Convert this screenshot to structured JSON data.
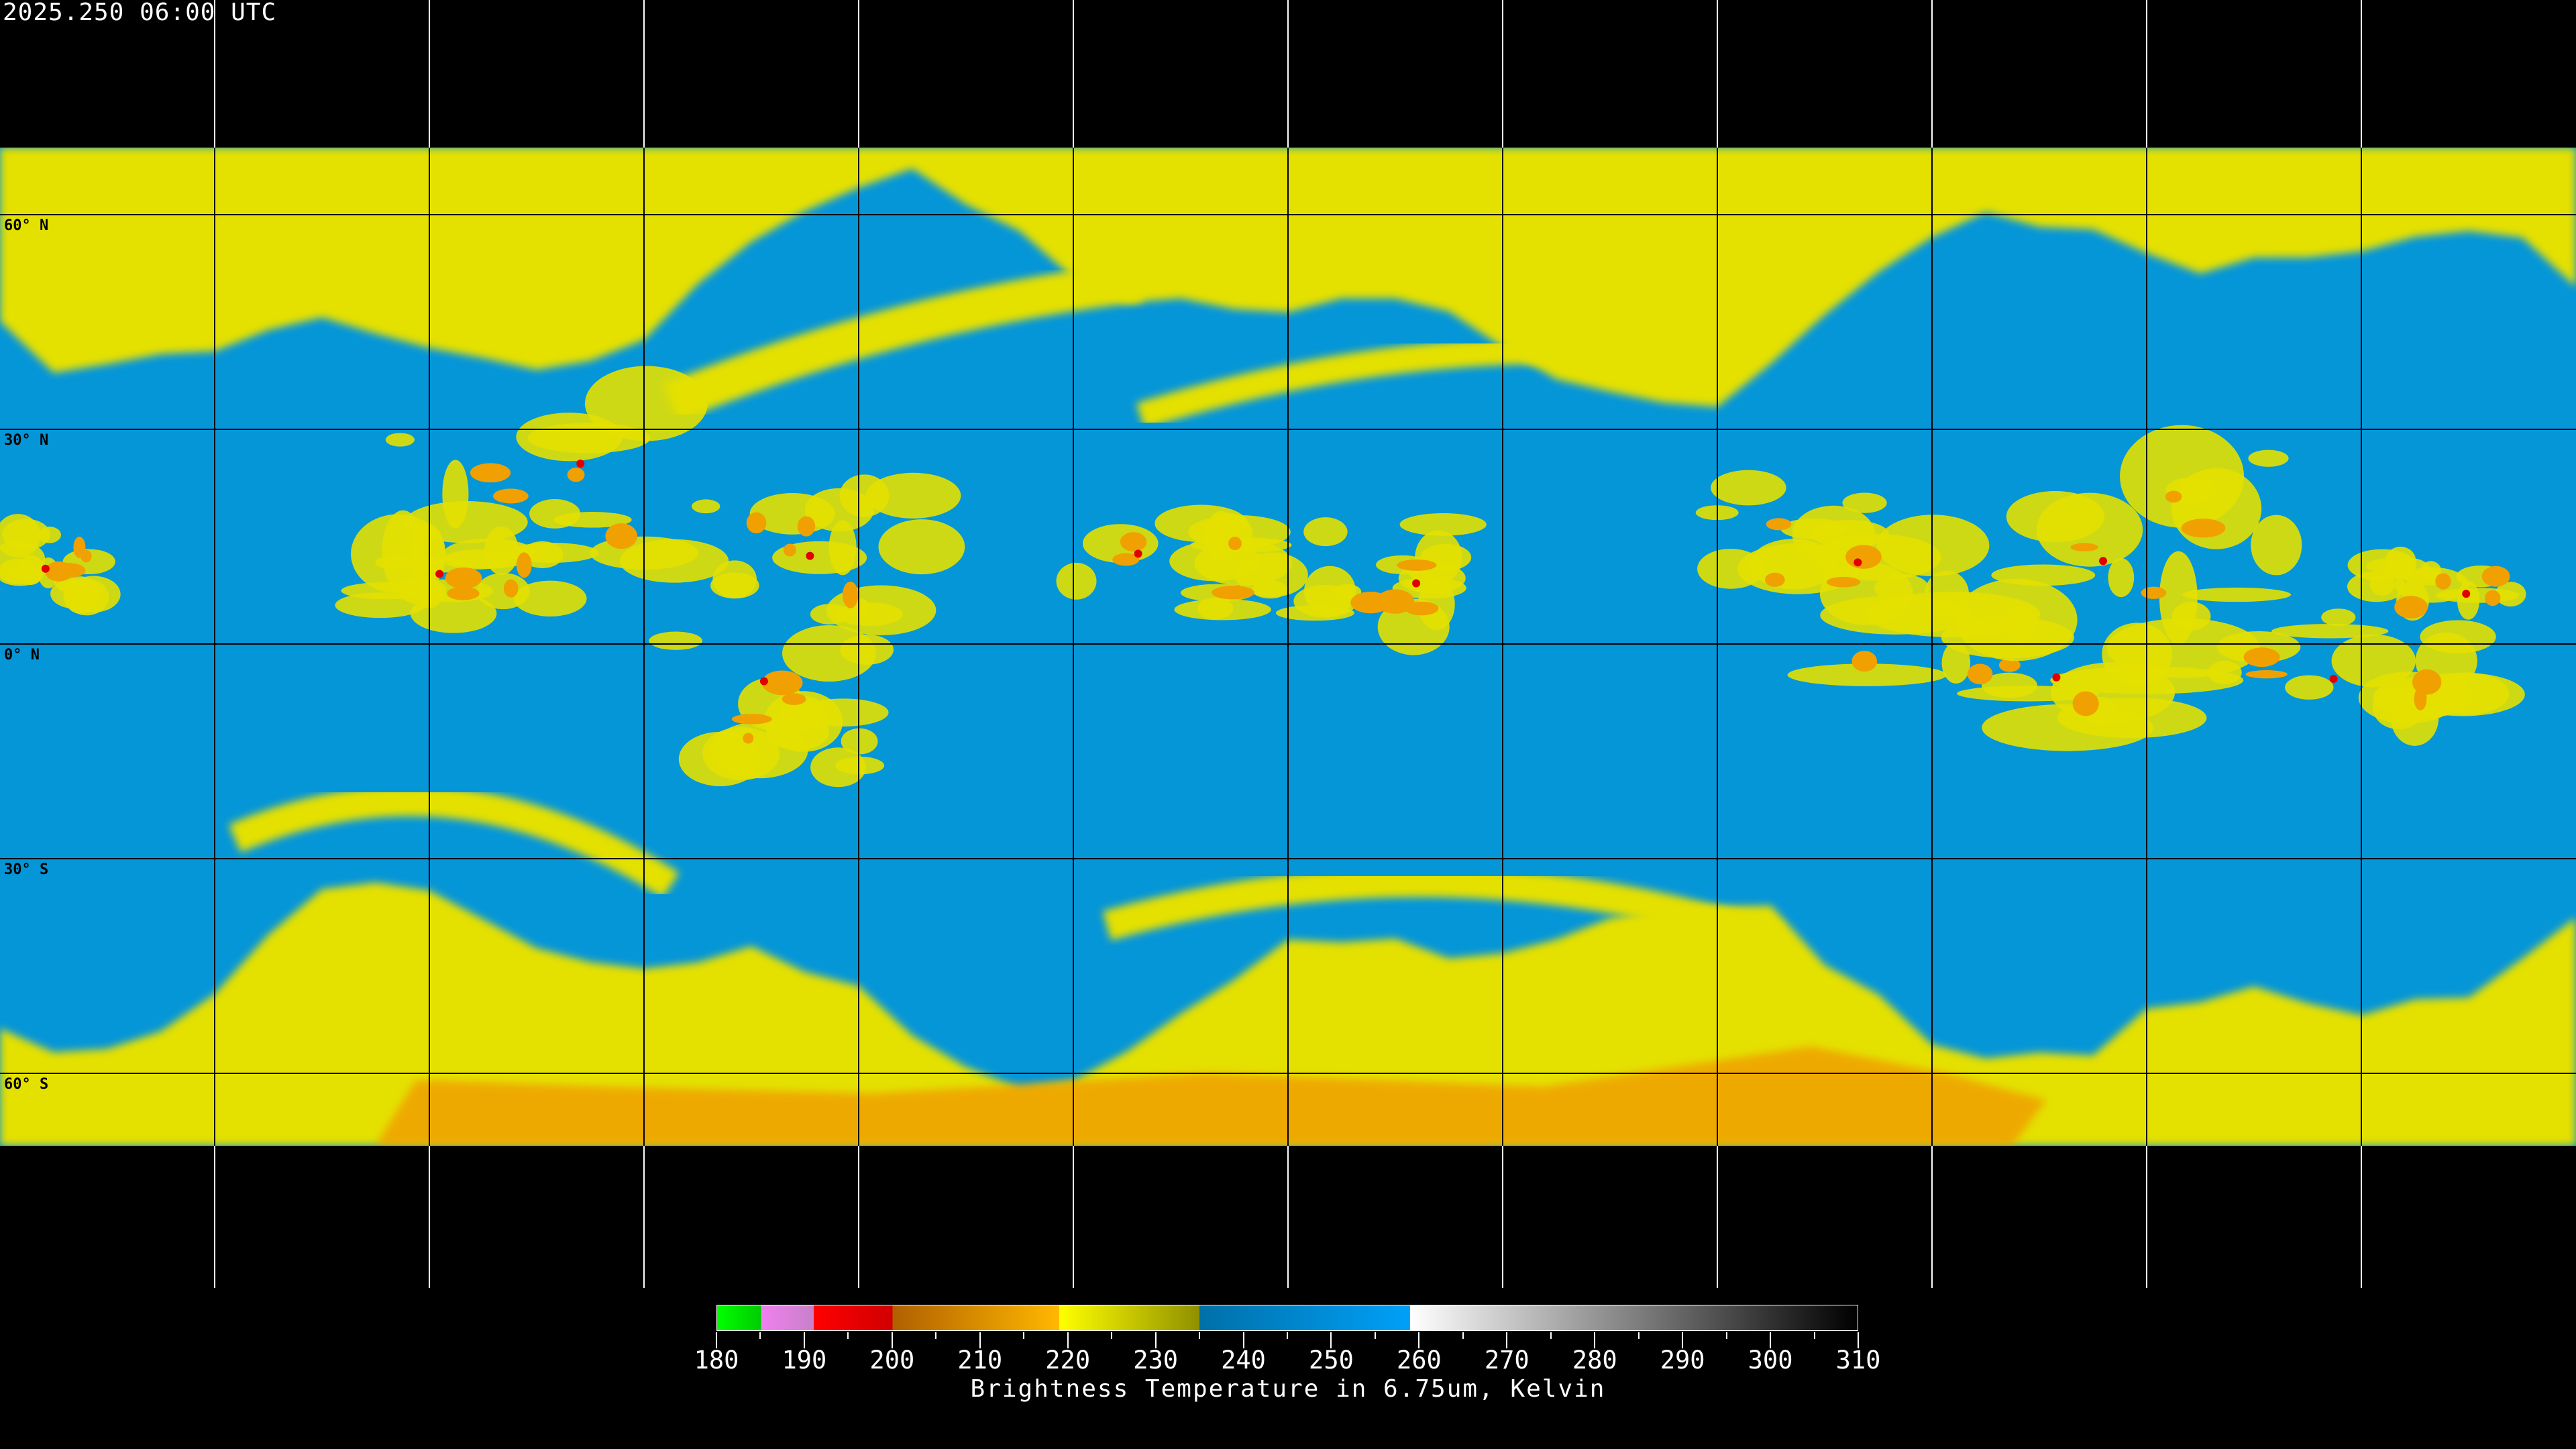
{
  "title": "2025.250 06:00 UTC",
  "map": {
    "projection": "equirectangular",
    "grid_spacing_deg": 30,
    "lat_labels": [
      "60° N",
      "30° N",
      "0° N",
      "30° S",
      "60° S"
    ],
    "lat_values": [
      60,
      30,
      0,
      -30,
      -60
    ],
    "colors": {
      "background": "#000000",
      "clear_sky": "#0596d8",
      "moist": "#e4e000",
      "cold_tops": "#f0a000",
      "deep_convection": "#e00000",
      "gridline_land": "#ffffff",
      "gridline_data": "#000000"
    }
  },
  "colorbar": {
    "title": "Brightness Temperature in 6.75um, Kelvin",
    "min": 180,
    "max": 310,
    "tick_labels": [
      "180",
      "190",
      "200",
      "210",
      "220",
      "230",
      "240",
      "250",
      "260",
      "270",
      "280",
      "290",
      "300",
      "310"
    ],
    "segments": [
      {
        "from": 180,
        "to": 185,
        "c1": "#00ff00",
        "c2": "#00cc00"
      },
      {
        "from": 185,
        "to": 191,
        "c1": "#f080f0",
        "c2": "#c880c8"
      },
      {
        "from": 191,
        "to": 200,
        "c1": "#ff0000",
        "c2": "#d00000"
      },
      {
        "from": 200,
        "to": 219,
        "c1": "#b06000",
        "c2": "#ffb800"
      },
      {
        "from": 219,
        "to": 235,
        "c1": "#ffff00",
        "c2": "#909000"
      },
      {
        "from": 235,
        "to": 259,
        "c1": "#0070a8",
        "c2": "#00a0f8"
      },
      {
        "from": 259,
        "to": 310,
        "c1": "#ffffff",
        "c2": "#000000"
      }
    ]
  }
}
